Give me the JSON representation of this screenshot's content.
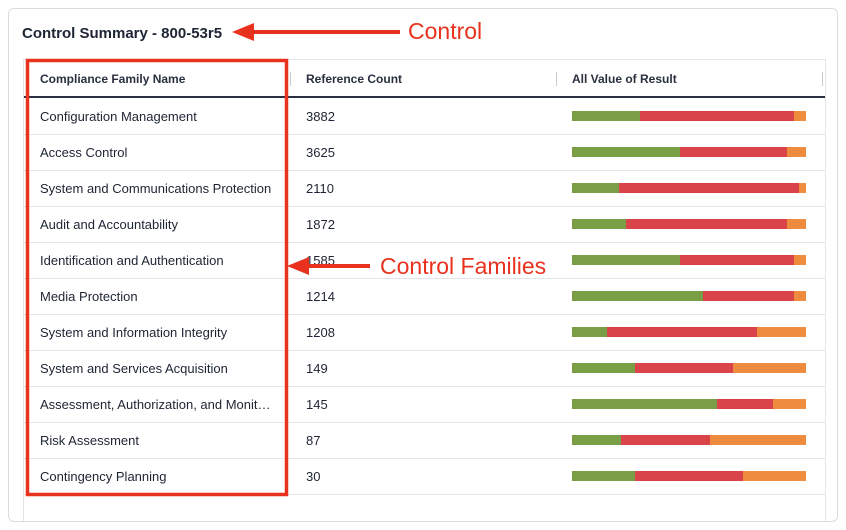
{
  "header": {
    "title": "Control Summary - 800-53r5"
  },
  "table": {
    "columns": [
      "Compliance Family Name",
      "Reference Count",
      "All Value of Result"
    ],
    "segment_colors": [
      "#7a9e45",
      "#d9434a",
      "#ef8b3c"
    ],
    "rows": [
      {
        "name": "Configuration Management",
        "count": "3882",
        "result": [
          29,
          66,
          5
        ]
      },
      {
        "name": "Access Control",
        "count": "3625",
        "result": [
          46,
          46,
          8
        ]
      },
      {
        "name": "System and Communications Protection",
        "count": "2110",
        "result": [
          20,
          77,
          3
        ]
      },
      {
        "name": "Audit and Accountability",
        "count": "1872",
        "result": [
          23,
          69,
          8
        ]
      },
      {
        "name": "Identification and Authentication",
        "count": "1585",
        "result": [
          46,
          49,
          5
        ]
      },
      {
        "name": "Media Protection",
        "count": "1214",
        "result": [
          56,
          39,
          5
        ]
      },
      {
        "name": "System and Information Integrity",
        "count": "1208",
        "result": [
          15,
          64,
          21
        ]
      },
      {
        "name": "System and Services Acquisition",
        "count": "149",
        "result": [
          27,
          42,
          31
        ]
      },
      {
        "name": "Assessment, Authorization, and Monitoring",
        "count": "145",
        "result": [
          62,
          24,
          14
        ]
      },
      {
        "name": "Risk Assessment",
        "count": "87",
        "result": [
          21,
          38,
          41
        ]
      },
      {
        "name": "Contingency Planning",
        "count": "30",
        "result": [
          27,
          46,
          27
        ]
      }
    ]
  },
  "annotations": {
    "control": "Control",
    "families": "Control Families"
  }
}
